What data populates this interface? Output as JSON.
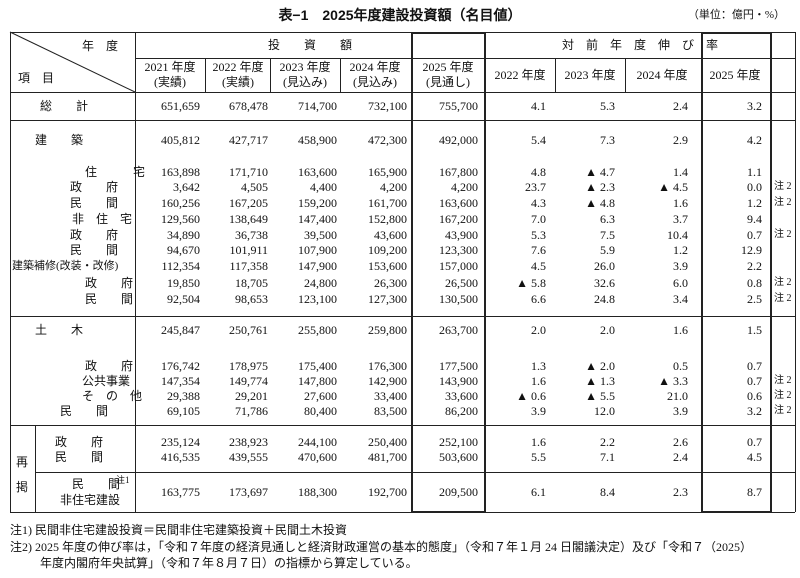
{
  "title": "表−1　2025年度建設投資額（名目値）",
  "unit": "（単位：億円・%）",
  "header": {
    "corner_top": "年　度",
    "corner_bottom": "項　目",
    "investment": "投　　資　　額",
    "growth": "対　前　年　度　伸　び　率",
    "investment_columns": [
      {
        "year": "2021 年度",
        "status": "(実績)"
      },
      {
        "year": "2022 年度",
        "status": "(実績)"
      },
      {
        "year": "2023 年度",
        "status": "(見込み)"
      },
      {
        "year": "2024 年度",
        "status": "(見込み)"
      },
      {
        "year": "2025 年度",
        "status": "(見通し)"
      }
    ],
    "growth_columns": [
      "2022 年度",
      "2023 年度",
      "2024 年度",
      "2025 年度"
    ]
  },
  "rows": [
    {
      "label": "総　　計",
      "values": [
        "651,659",
        "678,478",
        "714,700",
        "732,100",
        "755,700"
      ],
      "growth": [
        "4.1",
        "5.3",
        "2.4",
        "3.2"
      ]
    },
    {
      "label": "建　　築",
      "values": [
        "405,812",
        "427,717",
        "458,900",
        "472,300",
        "492,000"
      ],
      "growth": [
        "5.4",
        "7.3",
        "2.9",
        "4.2"
      ]
    },
    {
      "label": "住　　　宅",
      "values": [
        "163,898",
        "171,710",
        "163,600",
        "165,900",
        "167,800"
      ],
      "growth": [
        "4.8",
        "▲ 4.7",
        "1.4",
        "1.1"
      ]
    },
    {
      "label": "政　　府",
      "values": [
        "3,642",
        "4,505",
        "4,400",
        "4,200",
        "4,200"
      ],
      "growth": [
        "23.7",
        "▲ 2.3",
        "▲ 4.5",
        "0.0"
      ],
      "note": "注 2"
    },
    {
      "label": "民　　間",
      "values": [
        "160,256",
        "167,205",
        "159,200",
        "161,700",
        "163,600"
      ],
      "growth": [
        "4.3",
        "▲ 4.8",
        "1.6",
        "1.2"
      ],
      "note": "注 2"
    },
    {
      "label": "非　住　宅",
      "values": [
        "129,560",
        "138,649",
        "147,400",
        "152,800",
        "167,200"
      ],
      "growth": [
        "7.0",
        "6.3",
        "3.7",
        "9.4"
      ]
    },
    {
      "label": "政　　府",
      "values": [
        "34,890",
        "36,738",
        "39,500",
        "43,600",
        "43,900"
      ],
      "growth": [
        "5.3",
        "7.5",
        "10.4",
        "0.7"
      ],
      "note": "注 2"
    },
    {
      "label": "民　　間",
      "values": [
        "94,670",
        "101,911",
        "107,900",
        "109,200",
        "123,300"
      ],
      "growth": [
        "7.6",
        "5.9",
        "1.2",
        "12.9"
      ]
    },
    {
      "label": "建築補修(改装・改修)",
      "values": [
        "112,354",
        "117,358",
        "147,900",
        "153,600",
        "157,000"
      ],
      "growth": [
        "4.5",
        "26.0",
        "3.9",
        "2.2"
      ]
    },
    {
      "label": "政　　府",
      "values": [
        "19,850",
        "18,705",
        "24,800",
        "26,300",
        "26,500"
      ],
      "growth": [
        "▲ 5.8",
        "32.6",
        "6.0",
        "0.8"
      ],
      "note": "注 2"
    },
    {
      "label": "民　　間",
      "values": [
        "92,504",
        "98,653",
        "123,100",
        "127,300",
        "130,500"
      ],
      "growth": [
        "6.6",
        "24.8",
        "3.4",
        "2.5"
      ],
      "note": "注 2"
    },
    {
      "label": "土　　木",
      "values": [
        "245,847",
        "250,761",
        "255,800",
        "259,800",
        "263,700"
      ],
      "growth": [
        "2.0",
        "2.0",
        "1.6",
        "1.5"
      ]
    },
    {
      "label": "政　　府",
      "values": [
        "176,742",
        "178,975",
        "175,400",
        "176,300",
        "177,500"
      ],
      "growth": [
        "1.3",
        "▲ 2.0",
        "0.5",
        "0.7"
      ]
    },
    {
      "label": "公共事業",
      "values": [
        "147,354",
        "149,774",
        "147,800",
        "142,900",
        "143,900"
      ],
      "growth": [
        "1.6",
        "▲ 1.3",
        "▲ 3.3",
        "0.7"
      ],
      "note": "注 2"
    },
    {
      "label": "そ　の　他",
      "values": [
        "29,388",
        "29,201",
        "27,600",
        "33,400",
        "33,600"
      ],
      "growth": [
        "▲ 0.6",
        "▲ 5.5",
        "21.0",
        "0.6"
      ],
      "note": "注 2"
    },
    {
      "label": "民　　間",
      "values": [
        "69,105",
        "71,786",
        "80,400",
        "83,500",
        "86,200"
      ],
      "growth": [
        "3.9",
        "12.0",
        "3.9",
        "3.2"
      ],
      "note": "注 2"
    },
    {
      "label": "政　　府",
      "values": [
        "235,124",
        "238,923",
        "244,100",
        "250,400",
        "252,100"
      ],
      "growth": [
        "1.6",
        "2.2",
        "2.6",
        "0.7"
      ]
    },
    {
      "label": "民　　間",
      "values": [
        "416,535",
        "439,555",
        "470,600",
        "481,700",
        "503,600"
      ],
      "growth": [
        "5.5",
        "7.1",
        "2.4",
        "4.5"
      ]
    },
    {
      "label": "民　　間",
      "label_note": "注1",
      "label_line2": "非住宅建設",
      "values": [
        "163,775",
        "173,697",
        "188,300",
        "192,700",
        "209,500"
      ],
      "growth": [
        "6.1",
        "8.4",
        "2.3",
        "8.7"
      ]
    }
  ],
  "reprint_label": [
    "再",
    "掲"
  ],
  "footnotes": [
    "注1) 民間非住宅建設投資＝民間非住宅建築投資＋民間土木投資",
    "注2) 2025 年度の伸び率は，「令和７年度の経済見通しと経済財政運営の基本的態度」（令和７年１月 24 日閣議決定）及び「令和７（2025）",
    "年度内閣府年央試算」（令和７年８月７日）の指標から算定している。"
  ]
}
